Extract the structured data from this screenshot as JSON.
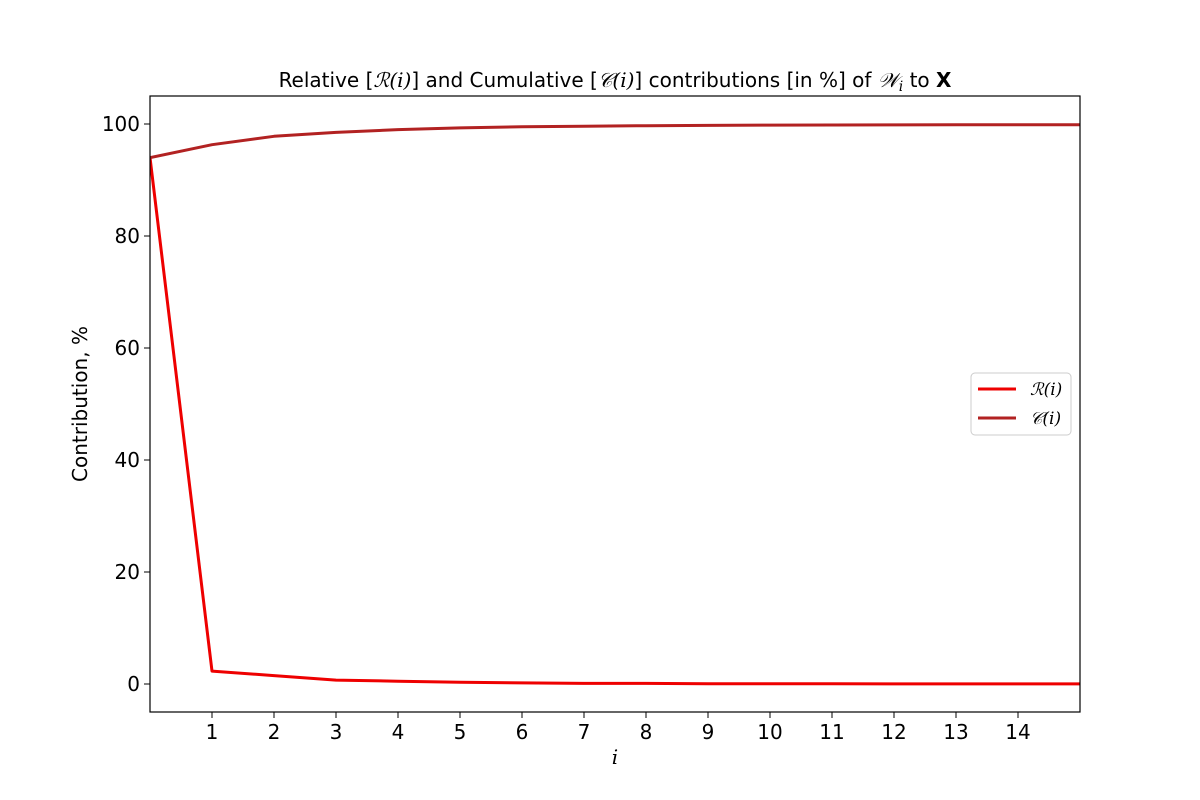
{
  "chart_data": {
    "type": "line",
    "title": {
      "p1": "Relative [",
      "r": "ℛ(i)",
      "p2": "] and Cumulative [",
      "c": "𝒞(i)",
      "p3": "] contributions [in %] of ",
      "w": "𝒲",
      "sub": "i",
      "p4": " to ",
      "x": "X"
    },
    "xlabel": "i",
    "ylabel": "Contribution, %",
    "xlim": [
      0,
      15
    ],
    "ylim": [
      -5,
      105
    ],
    "x_ticks": [
      1,
      2,
      3,
      4,
      5,
      6,
      7,
      8,
      9,
      10,
      11,
      12,
      13,
      14
    ],
    "y_ticks": [
      0,
      20,
      40,
      60,
      80,
      100
    ],
    "grid": false,
    "legend_position": "center-right",
    "x": [
      0,
      1,
      2,
      3,
      4,
      5,
      6,
      7,
      8,
      9,
      10,
      11,
      12,
      13,
      14,
      15
    ],
    "series": [
      {
        "name": "ℛ(i)",
        "color": "#ee0000",
        "values": [
          94.0,
          2.3,
          1.5,
          0.7,
          0.5,
          0.3,
          0.2,
          0.1,
          0.1,
          0.05,
          0.05,
          0.03,
          0.02,
          0.02,
          0.01,
          0.01
        ]
      },
      {
        "name": "𝒞(i)",
        "color": "#b22222",
        "values": [
          94.0,
          96.3,
          97.8,
          98.5,
          99.0,
          99.3,
          99.5,
          99.6,
          99.7,
          99.75,
          99.8,
          99.82,
          99.84,
          99.86,
          99.87,
          99.88
        ]
      }
    ]
  }
}
